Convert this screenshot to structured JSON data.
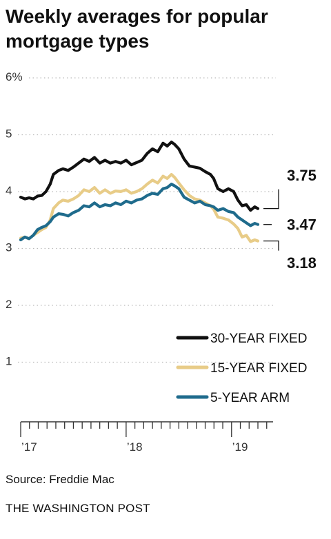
{
  "title": "Weekly averages for popular mortgage types",
  "source": "Source: Freddie Mac",
  "credit": "THE WASHINGTON POST",
  "chart_data": {
    "type": "line",
    "title": "Weekly averages for popular mortgage types",
    "xlabel": "",
    "ylabel": "",
    "ylim": [
      0,
      6
    ],
    "xlim": [
      2017.0,
      2019.42
    ],
    "y_ticks": [
      {
        "value": 6,
        "label": "6%"
      },
      {
        "value": 5,
        "label": "5"
      },
      {
        "value": 4,
        "label": "4"
      },
      {
        "value": 3,
        "label": "3"
      },
      {
        "value": 2,
        "label": "2"
      },
      {
        "value": 1,
        "label": "1"
      }
    ],
    "x_ticks": [
      {
        "value": 2017.0,
        "label": "’17"
      },
      {
        "value": 2018.0,
        "label": "’18"
      },
      {
        "value": 2019.0,
        "label": "’19"
      }
    ],
    "grid": "horizontal-dotted",
    "legend": "bottom-right",
    "end_labels": [
      {
        "series": "30-YEAR FIXED",
        "label": "3.75"
      },
      {
        "series": "5-YEAR ARM",
        "label": "3.47"
      },
      {
        "series": "15-YEAR FIXED",
        "label": "3.18"
      }
    ],
    "series": [
      {
        "name": "30-YEAR FIXED",
        "color": "#111111",
        "points": [
          [
            2017.0,
            3.95
          ],
          [
            2017.04,
            3.92
          ],
          [
            2017.08,
            3.94
          ],
          [
            2017.12,
            3.92
          ],
          [
            2017.16,
            3.97
          ],
          [
            2017.2,
            3.98
          ],
          [
            2017.24,
            4.05
          ],
          [
            2017.28,
            4.18
          ],
          [
            2017.31,
            4.35
          ],
          [
            2017.36,
            4.42
          ],
          [
            2017.4,
            4.45
          ],
          [
            2017.45,
            4.42
          ],
          [
            2017.5,
            4.48
          ],
          [
            2017.55,
            4.55
          ],
          [
            2017.6,
            4.62
          ],
          [
            2017.65,
            4.58
          ],
          [
            2017.7,
            4.65
          ],
          [
            2017.75,
            4.55
          ],
          [
            2017.8,
            4.6
          ],
          [
            2017.85,
            4.55
          ],
          [
            2017.9,
            4.58
          ],
          [
            2017.95,
            4.55
          ],
          [
            2018.0,
            4.6
          ],
          [
            2018.05,
            4.52
          ],
          [
            2018.1,
            4.56
          ],
          [
            2018.15,
            4.6
          ],
          [
            2018.2,
            4.72
          ],
          [
            2018.25,
            4.8
          ],
          [
            2018.3,
            4.75
          ],
          [
            2018.35,
            4.9
          ],
          [
            2018.39,
            4.85
          ],
          [
            2018.43,
            4.92
          ],
          [
            2018.46,
            4.88
          ],
          [
            2018.5,
            4.8
          ],
          [
            2018.55,
            4.62
          ],
          [
            2018.6,
            4.5
          ],
          [
            2018.65,
            4.48
          ],
          [
            2018.7,
            4.46
          ],
          [
            2018.75,
            4.4
          ],
          [
            2018.8,
            4.35
          ],
          [
            2018.83,
            4.28
          ],
          [
            2018.87,
            4.1
          ],
          [
            2018.92,
            4.05
          ],
          [
            2018.97,
            4.1
          ],
          [
            2019.02,
            4.05
          ],
          [
            2019.06,
            3.9
          ],
          [
            2019.1,
            3.8
          ],
          [
            2019.14,
            3.82
          ],
          [
            2019.18,
            3.72
          ],
          [
            2019.22,
            3.78
          ],
          [
            2019.25,
            3.75
          ]
        ]
      },
      {
        "name": "15-YEAR FIXED",
        "color": "#e8cc88",
        "points": [
          [
            2017.0,
            3.23
          ],
          [
            2017.04,
            3.25
          ],
          [
            2017.08,
            3.22
          ],
          [
            2017.12,
            3.28
          ],
          [
            2017.16,
            3.33
          ],
          [
            2017.2,
            3.38
          ],
          [
            2017.24,
            3.42
          ],
          [
            2017.28,
            3.55
          ],
          [
            2017.31,
            3.75
          ],
          [
            2017.36,
            3.85
          ],
          [
            2017.4,
            3.9
          ],
          [
            2017.45,
            3.88
          ],
          [
            2017.5,
            3.92
          ],
          [
            2017.55,
            3.98
          ],
          [
            2017.6,
            4.08
          ],
          [
            2017.65,
            4.05
          ],
          [
            2017.7,
            4.12
          ],
          [
            2017.75,
            4.02
          ],
          [
            2017.8,
            4.08
          ],
          [
            2017.85,
            4.02
          ],
          [
            2017.9,
            4.06
          ],
          [
            2017.95,
            4.05
          ],
          [
            2018.0,
            4.08
          ],
          [
            2018.05,
            4.02
          ],
          [
            2018.1,
            4.05
          ],
          [
            2018.15,
            4.1
          ],
          [
            2018.2,
            4.18
          ],
          [
            2018.25,
            4.25
          ],
          [
            2018.3,
            4.2
          ],
          [
            2018.35,
            4.32
          ],
          [
            2018.39,
            4.28
          ],
          [
            2018.43,
            4.35
          ],
          [
            2018.46,
            4.3
          ],
          [
            2018.5,
            4.2
          ],
          [
            2018.55,
            4.08
          ],
          [
            2018.6,
            3.98
          ],
          [
            2018.65,
            3.92
          ],
          [
            2018.7,
            3.9
          ],
          [
            2018.75,
            3.85
          ],
          [
            2018.8,
            3.8
          ],
          [
            2018.83,
            3.74
          ],
          [
            2018.87,
            3.6
          ],
          [
            2018.92,
            3.58
          ],
          [
            2018.97,
            3.55
          ],
          [
            2019.02,
            3.48
          ],
          [
            2019.06,
            3.4
          ],
          [
            2019.1,
            3.25
          ],
          [
            2019.14,
            3.28
          ],
          [
            2019.18,
            3.17
          ],
          [
            2019.22,
            3.2
          ],
          [
            2019.25,
            3.18
          ]
        ]
      },
      {
        "name": "5-YEAR ARM",
        "color": "#1f6b8c",
        "points": [
          [
            2017.0,
            3.2
          ],
          [
            2017.04,
            3.25
          ],
          [
            2017.08,
            3.22
          ],
          [
            2017.12,
            3.28
          ],
          [
            2017.16,
            3.38
          ],
          [
            2017.2,
            3.42
          ],
          [
            2017.24,
            3.45
          ],
          [
            2017.28,
            3.52
          ],
          [
            2017.31,
            3.6
          ],
          [
            2017.36,
            3.66
          ],
          [
            2017.4,
            3.65
          ],
          [
            2017.45,
            3.62
          ],
          [
            2017.5,
            3.68
          ],
          [
            2017.55,
            3.72
          ],
          [
            2017.6,
            3.8
          ],
          [
            2017.65,
            3.78
          ],
          [
            2017.7,
            3.85
          ],
          [
            2017.75,
            3.78
          ],
          [
            2017.8,
            3.82
          ],
          [
            2017.85,
            3.8
          ],
          [
            2017.9,
            3.85
          ],
          [
            2017.95,
            3.82
          ],
          [
            2018.0,
            3.88
          ],
          [
            2018.05,
            3.85
          ],
          [
            2018.1,
            3.9
          ],
          [
            2018.15,
            3.92
          ],
          [
            2018.2,
            3.98
          ],
          [
            2018.25,
            4.02
          ],
          [
            2018.3,
            4.0
          ],
          [
            2018.35,
            4.1
          ],
          [
            2018.39,
            4.12
          ],
          [
            2018.43,
            4.18
          ],
          [
            2018.46,
            4.15
          ],
          [
            2018.5,
            4.1
          ],
          [
            2018.55,
            3.95
          ],
          [
            2018.6,
            3.9
          ],
          [
            2018.65,
            3.85
          ],
          [
            2018.7,
            3.88
          ],
          [
            2018.75,
            3.82
          ],
          [
            2018.8,
            3.8
          ],
          [
            2018.83,
            3.78
          ],
          [
            2018.87,
            3.72
          ],
          [
            2018.92,
            3.75
          ],
          [
            2018.97,
            3.7
          ],
          [
            2019.02,
            3.68
          ],
          [
            2019.06,
            3.6
          ],
          [
            2019.1,
            3.55
          ],
          [
            2019.14,
            3.5
          ],
          [
            2019.18,
            3.45
          ],
          [
            2019.22,
            3.49
          ],
          [
            2019.25,
            3.47
          ]
        ]
      }
    ]
  }
}
